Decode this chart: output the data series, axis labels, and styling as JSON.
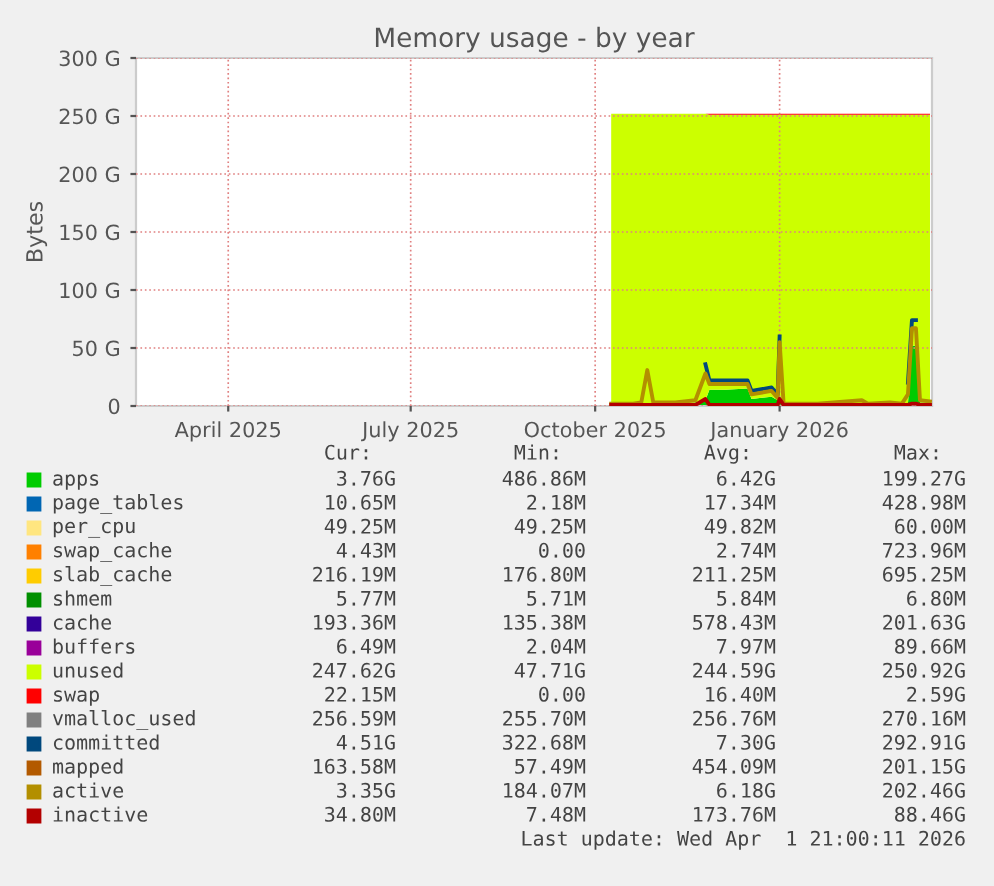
{
  "chart_data": {
    "type": "area",
    "title": "Memory usage - by year",
    "ylabel": "Bytes",
    "stacked": true,
    "grid": true,
    "legend": "bottom",
    "x": [
      "2025-10-09",
      "2025-10-20",
      "2025-10-24",
      "2025-10-27",
      "2025-10-30",
      "2025-11-10",
      "2025-11-20",
      "2025-11-25",
      "2025-11-27",
      "2025-12-05",
      "2025-12-16",
      "2025-12-18",
      "2025-12-28",
      "2025-12-31",
      "2026-01-01",
      "2026-01-03",
      "2026-01-20",
      "2026-02-11",
      "2026-02-14",
      "2026-02-25",
      "2026-03-03",
      "2026-03-06",
      "2026-03-08",
      "2026-03-10",
      "2026-03-12",
      "2026-03-17"
    ],
    "xlim": [
      "2025-02-14",
      "2026-03-18"
    ],
    "xticks": [
      {
        "value": "2025-04-01",
        "label": "April 2025"
      },
      {
        "value": "2025-07-01",
        "label": "July 2025"
      },
      {
        "value": "2025-10-01",
        "label": "October 2025"
      },
      {
        "value": "2026-01-01",
        "label": "January 2026"
      }
    ],
    "ylim": [
      0,
      300
    ],
    "yticks": [
      0,
      {
        "value": 50,
        "label": "50 G"
      },
      {
        "value": 100,
        "label": "100 G"
      },
      {
        "value": 150,
        "label": "150 G"
      },
      {
        "value": 200,
        "label": "200 G"
      },
      {
        "value": 250,
        "label": "250 G"
      },
      {
        "value": 300,
        "label": "300 G"
      }
    ],
    "series": [
      {
        "name": "apps",
        "color": "#00cc00",
        "values": [
          1,
          1,
          1,
          2,
          1,
          2,
          3,
          5,
          14,
          14,
          15,
          6,
          8,
          5,
          10,
          1,
          1,
          2,
          1,
          1,
          1,
          2,
          52,
          52,
          3,
          3
        ]
      },
      {
        "name": "page_tables",
        "color": "#0066b3",
        "values": [
          null,
          null,
          null,
          null,
          null,
          null,
          null,
          null,
          null,
          null,
          null,
          null,
          null,
          null,
          null,
          null,
          null,
          null,
          null,
          null,
          null,
          null,
          null,
          null,
          null,
          null
        ]
      },
      {
        "name": "per_cpu",
        "color": "#ffe680",
        "values": [
          null,
          null,
          null,
          null,
          null,
          null,
          null,
          null,
          null,
          null,
          null,
          null,
          null,
          null,
          null,
          null,
          null,
          null,
          null,
          null,
          null,
          null,
          null,
          null,
          null,
          null
        ]
      },
      {
        "name": "swap_cache",
        "color": "#ff8000",
        "values": [
          null,
          null,
          null,
          null,
          null,
          null,
          null,
          null,
          null,
          null,
          null,
          null,
          null,
          null,
          null,
          null,
          null,
          null,
          null,
          null,
          null,
          null,
          null,
          null,
          null,
          null
        ]
      },
      {
        "name": "slab_cache",
        "color": "#ffcc00",
        "values": [
          null,
          null,
          null,
          null,
          null,
          null,
          null,
          null,
          null,
          null,
          null,
          null,
          null,
          null,
          null,
          null,
          null,
          null,
          null,
          null,
          null,
          null,
          null,
          null,
          null,
          null
        ]
      },
      {
        "name": "shmem",
        "color": "#008f00",
        "values": [
          null,
          null,
          null,
          null,
          null,
          null,
          null,
          null,
          null,
          null,
          null,
          null,
          null,
          null,
          null,
          null,
          null,
          null,
          null,
          null,
          null,
          null,
          null,
          null,
          null,
          null
        ]
      },
      {
        "name": "cache",
        "color": "#330099",
        "values": [
          null,
          null,
          null,
          null,
          null,
          null,
          null,
          null,
          null,
          null,
          null,
          null,
          null,
          null,
          null,
          null,
          null,
          null,
          null,
          null,
          null,
          null,
          null,
          null,
          null,
          null
        ]
      },
      {
        "name": "buffers",
        "color": "#990099",
        "values": [
          null,
          null,
          null,
          null,
          null,
          null,
          null,
          null,
          null,
          null,
          null,
          null,
          null,
          null,
          null,
          null,
          null,
          null,
          null,
          null,
          null,
          null,
          null,
          null,
          null,
          null
        ]
      },
      {
        "name": "unused",
        "color": "#ccff00",
        "values": [
          251,
          251,
          251,
          250,
          251,
          250,
          249,
          247,
          237,
          237,
          236,
          245,
          243,
          246,
          241,
          250,
          250,
          249,
          250,
          250,
          250,
          249,
          199,
          199,
          248,
          248
        ]
      },
      {
        "name": "swap",
        "color": "#ff0000",
        "values": [
          0,
          0,
          0,
          0,
          0,
          0,
          0,
          0,
          1,
          1,
          1,
          1,
          1,
          1,
          1,
          1,
          1,
          1,
          1,
          1,
          1,
          1,
          1,
          1,
          1,
          1
        ]
      },
      {
        "name": "vmalloc_used",
        "color": "#808080",
        "type": "line",
        "values": [
          null,
          null,
          null,
          null,
          null,
          null,
          null,
          null,
          null,
          null,
          null,
          null,
          null,
          null,
          null,
          null,
          null,
          null,
          null,
          null,
          null,
          null,
          null,
          null,
          null,
          null
        ]
      },
      {
        "name": "committed",
        "color": "#00487d",
        "type": "line",
        "values": [
          null,
          null,
          null,
          null,
          null,
          null,
          null,
          36,
          22,
          22,
          22,
          13,
          16,
          10,
          60,
          null,
          null,
          null,
          null,
          null,
          null,
          20,
          74,
          74,
          null,
          null
        ]
      },
      {
        "name": "mapped",
        "color": "#b35a00",
        "type": "line",
        "values": [
          null,
          null,
          null,
          null,
          null,
          null,
          null,
          null,
          null,
          null,
          null,
          null,
          null,
          null,
          null,
          null,
          null,
          null,
          null,
          null,
          null,
          null,
          null,
          null,
          null,
          null
        ]
      },
      {
        "name": "active",
        "color": "#b38f00",
        "type": "line",
        "values": [
          2,
          2,
          3,
          31,
          3,
          3,
          5,
          28,
          19,
          19,
          19,
          10,
          13,
          7,
          55,
          2,
          2,
          5,
          2,
          3,
          2,
          10,
          67,
          67,
          5,
          4
        ]
      },
      {
        "name": "inactive",
        "color": "#b30000",
        "type": "line",
        "values": [
          1,
          1,
          1,
          1,
          1,
          1,
          1,
          6,
          1,
          1,
          1,
          1,
          1,
          1,
          6,
          1,
          1,
          1,
          1,
          1,
          1,
          1,
          2,
          2,
          1,
          1
        ]
      }
    ],
    "annotations": [
      "Cur:",
      "Min:",
      "Avg:",
      "Max:",
      "3.76G",
      "486.86M",
      "6.42G",
      "199.27G",
      "10.65M",
      "2.18M",
      "17.34M",
      "428.98M",
      "49.25M",
      "49.25M",
      "49.82M",
      "60.00M",
      "4.43M",
      "0.00",
      "2.74M",
      "723.96M",
      "216.19M",
      "176.80M",
      "211.25M",
      "695.25M",
      "5.77M",
      "5.71M",
      "5.84M",
      "6.80M",
      "193.36M",
      "135.38M",
      "578.43M",
      "201.63G",
      "6.49M",
      "2.04M",
      "7.97M",
      "89.66M",
      "247.62G",
      "47.71G",
      "244.59G",
      "250.92G",
      "22.15M",
      "0.00",
      "16.40M",
      "2.59G",
      "256.59M",
      "255.70M",
      "256.76M",
      "270.16M",
      "4.51G",
      "322.68M",
      "7.30G",
      "292.91G",
      "163.58M",
      "57.49M",
      "454.09M",
      "201.15G",
      "3.35G",
      "184.07M",
      "6.18G",
      "202.46G",
      "34.80M",
      "7.48M",
      "173.76M",
      "88.46G",
      "Last update: Wed Apr  1 21:00:11 2026"
    ]
  }
}
